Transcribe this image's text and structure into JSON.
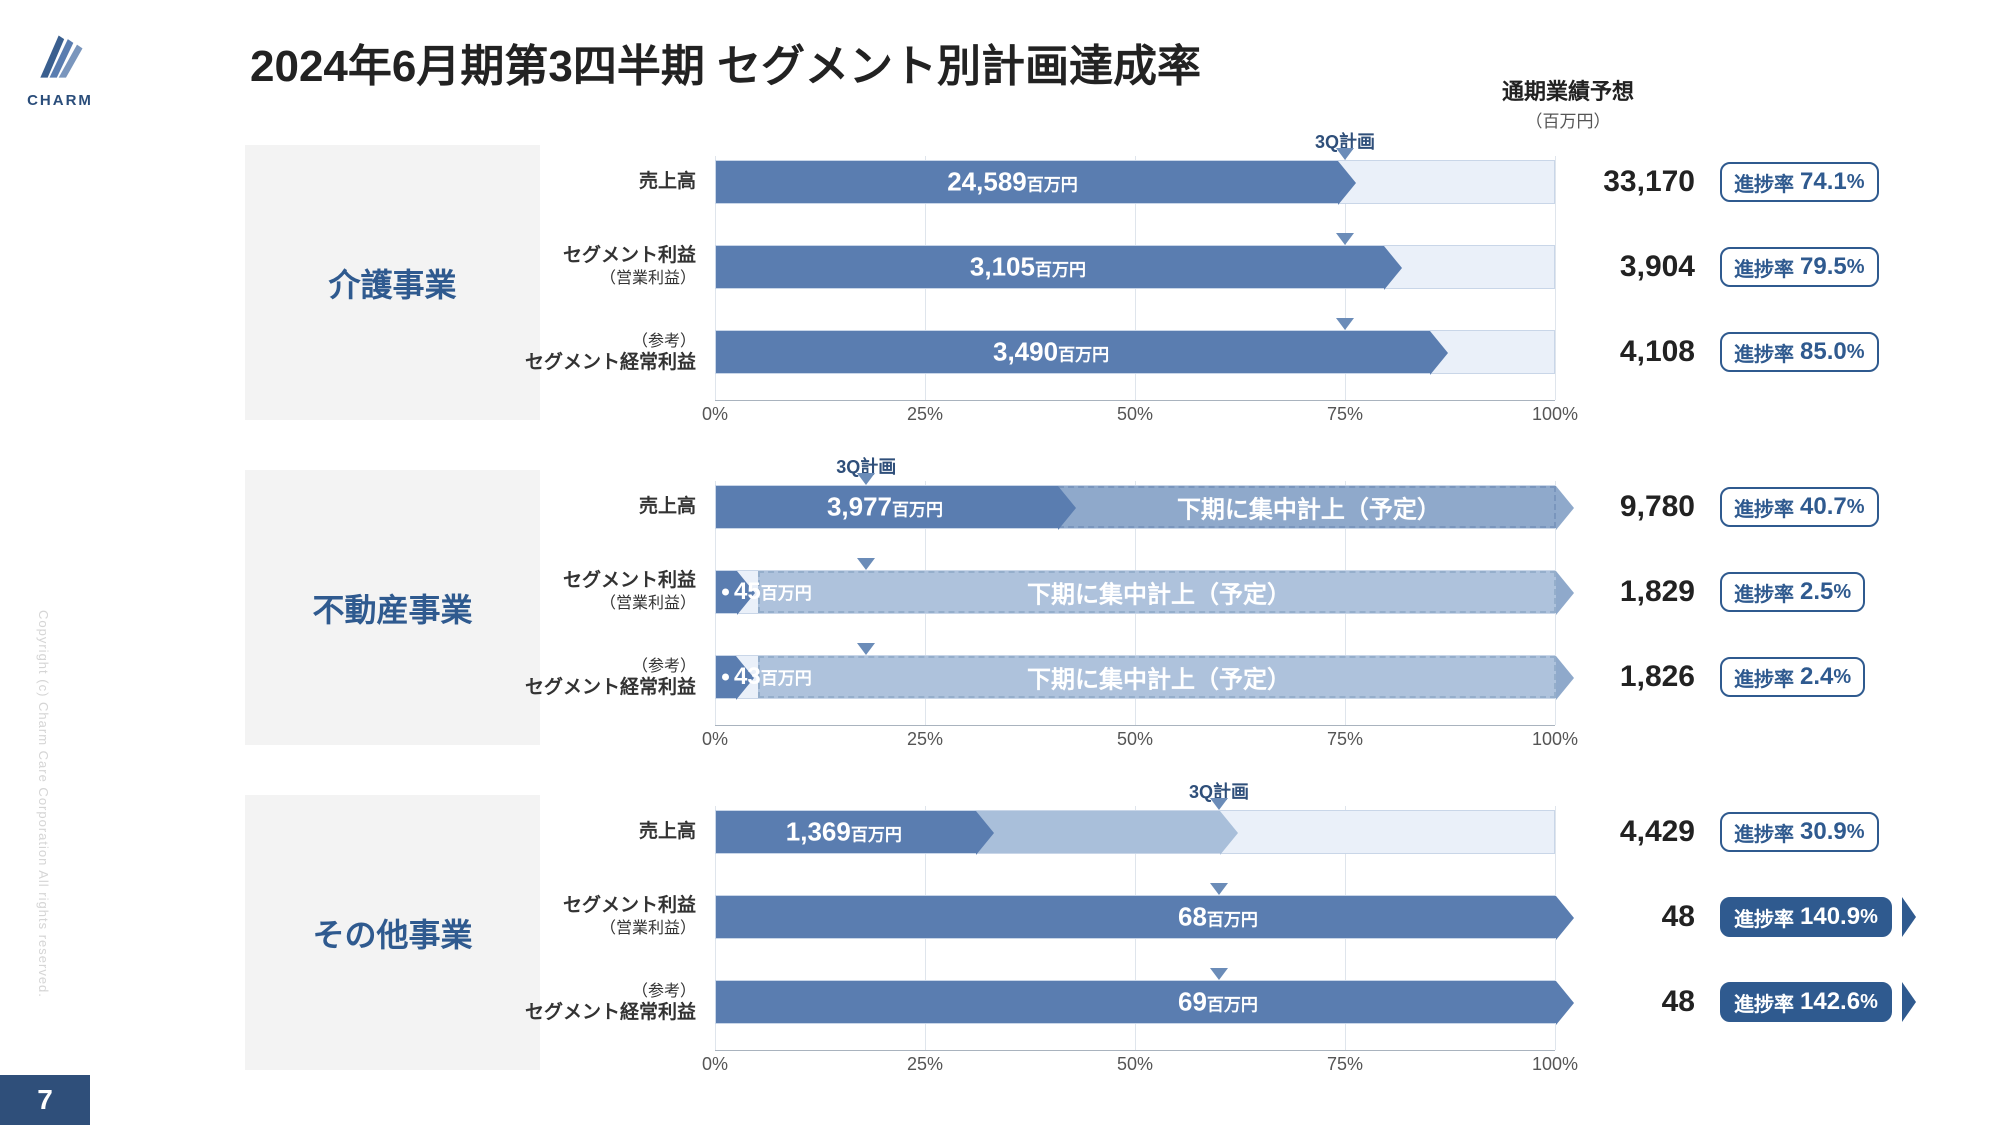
{
  "page": {
    "title": "2024年6月期第3四半期 セグメント別計画達成率",
    "number": "7",
    "brand": "CHARM",
    "copyright": "Copyright (c) Charm Care Corporation All rights reserved."
  },
  "colors": {
    "primary": "#5a7db0",
    "primaryDark": "#2f5a8f",
    "light": "#a9bfda",
    "track": "#eaf0f9",
    "segBg": "#f3f3f3",
    "brandBlue": "#2f4f7a"
  },
  "headers": {
    "forecast": "通期業績予想",
    "forecastSub": "（百万円）",
    "q3plan": "3Q計画"
  },
  "unit": "百万円",
  "progressLabel": "進捗率",
  "noteText": "下期に集中計上（予定）",
  "rowLabels": {
    "revenue": "売上高",
    "segProfit": "セグメント利益",
    "segProfitSub": "（営業利益）",
    "ref": "（参考）",
    "segOrdinary": "セグメント経常利益"
  },
  "segments": [
    {
      "name": "介護事業",
      "q3plan_pct": 75,
      "rows": [
        {
          "labelKey": "revenue",
          "value": "24,589",
          "value_pct": 74.1,
          "forecast": "33,170",
          "progress": "74.1",
          "overflow": false,
          "secondary": null
        },
        {
          "labelKey": "segProfit",
          "value": "3,105",
          "value_pct": 79.5,
          "forecast": "3,904",
          "progress": "79.5",
          "overflow": false,
          "secondary": null
        },
        {
          "labelKey": "segOrdinary",
          "value": "3,490",
          "value_pct": 85.0,
          "forecast": "4,108",
          "progress": "85.0",
          "overflow": false,
          "secondary": null
        }
      ]
    },
    {
      "name": "不動産事業",
      "q3plan_pct": 18,
      "rows": [
        {
          "labelKey": "revenue",
          "value": "3,977",
          "value_pct": 40.7,
          "forecast": "9,780",
          "progress": "40.7",
          "overflow": false,
          "secondary": {
            "type": "dashed",
            "from_pct": 40.7,
            "to_pct": 100,
            "note": true
          }
        },
        {
          "labelKey": "segProfit",
          "value": "45",
          "value_pct": 2.5,
          "forecast": "1,829",
          "progress": "2.5",
          "overflow": false,
          "negative": true,
          "secondary": {
            "type": "dashed2",
            "from_pct": 5,
            "to_pct": 100,
            "note": true
          }
        },
        {
          "labelKey": "segOrdinary",
          "value": "43",
          "value_pct": 2.4,
          "forecast": "1,826",
          "progress": "2.4",
          "overflow": false,
          "negative": true,
          "secondary": {
            "type": "dashed2",
            "from_pct": 5,
            "to_pct": 100,
            "note": true
          }
        }
      ]
    },
    {
      "name": "その他事業",
      "q3plan_pct": 60,
      "rows": [
        {
          "labelKey": "revenue",
          "value": "1,369",
          "value_pct": 30.9,
          "forecast": "4,429",
          "progress": "30.9",
          "overflow": false,
          "secondary": {
            "type": "light",
            "from_pct": 30.9,
            "to_pct": 60,
            "note": false
          }
        },
        {
          "labelKey": "segProfit",
          "value": "68",
          "value_pct": 140.9,
          "forecast": "48",
          "progress": "140.9",
          "overflow": true,
          "secondary": null
        },
        {
          "labelKey": "segOrdinary",
          "value": "69",
          "value_pct": 142.6,
          "forecast": "48",
          "progress": "142.6",
          "overflow": true,
          "secondary": null
        }
      ]
    }
  ],
  "axis": {
    "ticks": [
      "0%",
      "25%",
      "50%",
      "75%",
      "100%"
    ]
  },
  "layout": {
    "segTops": [
      145,
      470,
      795
    ],
    "segBoxHeight": 275,
    "rowOffsets": [
      15,
      100,
      185
    ],
    "axisOffset": 255,
    "barTrackLeft": 595,
    "barTrackWidth": 840,
    "forecastLeft": 1455,
    "badgeLeft": 1600,
    "headerFcLeft": 1382,
    "headerFcTop": 78
  }
}
